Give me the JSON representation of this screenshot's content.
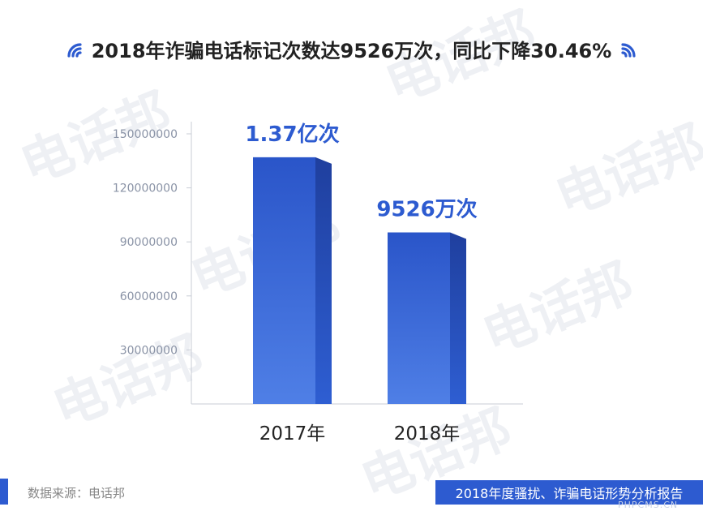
{
  "title": "2018年诈骗电话标记次数达9526万次，同比下降30.46%",
  "watermark_text": "电话邦",
  "source_label": "数据来源：电话邦",
  "report_label": "2018年度骚扰、诈骗电话形势分析报告",
  "site_mark": "PHPCMS.CN",
  "colors": {
    "bar_front": "#3060d0",
    "bar_side": "#2448b0",
    "accent": "#2d5bd0"
  },
  "chart_data": {
    "type": "bar",
    "categories": [
      "2017年",
      "2018年"
    ],
    "values": [
      137000000,
      95260000
    ],
    "data_labels": [
      "1.37亿次",
      "9526万次"
    ],
    "yticks": [
      "30000000",
      "60000000",
      "90000000",
      "120000000",
      "150000000"
    ],
    "ylim": [
      0,
      150000000
    ],
    "grid": false,
    "legend": "none"
  }
}
